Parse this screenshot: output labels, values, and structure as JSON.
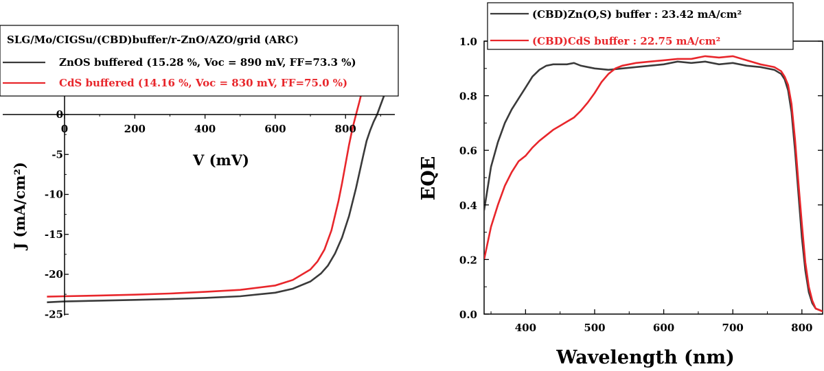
{
  "chart_data": [
    {
      "type": "line",
      "title": "",
      "xlabel": "V (mV)",
      "ylabel": "J (mA/cm²)",
      "xlim": [
        -50,
        950
      ],
      "ylim": [
        -25,
        2.5
      ],
      "xticks": [
        "0",
        "200",
        "400",
        "600",
        "800"
      ],
      "xtick_values": [
        0,
        200,
        400,
        600,
        800
      ],
      "yticks": [
        "0",
        "-5",
        "-10",
        "-15",
        "-20",
        "-25"
      ],
      "ytick_values": [
        0,
        -5,
        -10,
        -15,
        -20,
        -25
      ],
      "grid": false,
      "legend_position": "top-left",
      "legend_title": "SLG/Mo/CIGSu/(CBD)buffer/r-ZnO/AZO/grid (ARC)",
      "series": [
        {
          "name": "ZnOS buffered (15.28 %, Voc = 890 mV, FF=73.3 %)",
          "color": "#3a3a3a",
          "x": [
            -50,
            0,
            100,
            200,
            300,
            400,
            500,
            600,
            650,
            700,
            730,
            750,
            770,
            790,
            810,
            830,
            850,
            860,
            870,
            880,
            890,
            900,
            910,
            920
          ],
          "y": [
            -23.5,
            -23.4,
            -23.3,
            -23.2,
            -23.1,
            -22.95,
            -22.75,
            -22.3,
            -21.8,
            -20.9,
            -19.9,
            -18.9,
            -17.4,
            -15.4,
            -12.7,
            -9.2,
            -5.2,
            -3.3,
            -2.0,
            -0.9,
            0.0,
            1.2,
            2.4,
            3.8
          ]
        },
        {
          "name": "CdS buffered (14.16 %, Voc = 830 mV, FF=75.0 %)",
          "color": "#e8262b",
          "x": [
            -50,
            0,
            100,
            200,
            300,
            400,
            500,
            600,
            650,
            700,
            720,
            740,
            760,
            780,
            790,
            800,
            810,
            820,
            830,
            840,
            850
          ],
          "y": [
            -22.8,
            -22.75,
            -22.65,
            -22.55,
            -22.4,
            -22.2,
            -21.95,
            -21.4,
            -20.7,
            -19.4,
            -18.4,
            -16.9,
            -14.5,
            -10.8,
            -8.6,
            -6.2,
            -3.8,
            -1.7,
            0.0,
            1.7,
            3.5
          ]
        }
      ]
    },
    {
      "type": "line",
      "title": "",
      "xlabel": "Wavelength (nm)",
      "ylabel": "EQE",
      "xlim": [
        340,
        830
      ],
      "ylim": [
        0,
        1.0
      ],
      "xticks": [
        "400",
        "500",
        "600",
        "700",
        "800"
      ],
      "xtick_values": [
        400,
        500,
        600,
        700,
        800
      ],
      "yticks": [
        "0.0",
        "0.2",
        "0.4",
        "0.6",
        "0.8",
        "1.0"
      ],
      "ytick_values": [
        0.0,
        0.2,
        0.4,
        0.6,
        0.8,
        1.0
      ],
      "grid": false,
      "legend_position": "top",
      "series": [
        {
          "name": "(CBD)Zn(O,S) buffer : 23.42 mA/cm²",
          "color": "#3a3a3a",
          "x": [
            340,
            350,
            360,
            370,
            380,
            390,
            400,
            410,
            420,
            430,
            440,
            450,
            460,
            470,
            480,
            490,
            500,
            520,
            540,
            560,
            580,
            600,
            620,
            640,
            660,
            680,
            700,
            720,
            740,
            760,
            770,
            775,
            780,
            785,
            790,
            795,
            800,
            805,
            810,
            815,
            820,
            825,
            830
          ],
          "y": [
            0.38,
            0.54,
            0.63,
            0.7,
            0.75,
            0.79,
            0.83,
            0.87,
            0.895,
            0.91,
            0.915,
            0.915,
            0.915,
            0.92,
            0.91,
            0.905,
            0.9,
            0.895,
            0.9,
            0.905,
            0.91,
            0.915,
            0.925,
            0.92,
            0.925,
            0.915,
            0.92,
            0.91,
            0.905,
            0.895,
            0.88,
            0.86,
            0.82,
            0.74,
            0.6,
            0.44,
            0.28,
            0.16,
            0.08,
            0.04,
            0.02,
            0.015,
            0.01
          ]
        },
        {
          "name": "(CBD)CdS buffer : 22.75 mA/cm²",
          "color": "#e8262b",
          "x": [
            340,
            350,
            360,
            370,
            380,
            390,
            400,
            410,
            420,
            430,
            440,
            450,
            460,
            470,
            480,
            490,
            500,
            510,
            520,
            530,
            540,
            560,
            580,
            600,
            620,
            640,
            660,
            680,
            700,
            720,
            740,
            760,
            770,
            775,
            780,
            785,
            790,
            795,
            800,
            805,
            810,
            815,
            820,
            825,
            830
          ],
          "y": [
            0.2,
            0.32,
            0.4,
            0.47,
            0.52,
            0.56,
            0.58,
            0.61,
            0.635,
            0.655,
            0.675,
            0.69,
            0.705,
            0.72,
            0.745,
            0.775,
            0.81,
            0.85,
            0.88,
            0.9,
            0.91,
            0.92,
            0.925,
            0.93,
            0.935,
            0.935,
            0.945,
            0.94,
            0.945,
            0.93,
            0.915,
            0.905,
            0.89,
            0.87,
            0.84,
            0.77,
            0.64,
            0.48,
            0.33,
            0.19,
            0.1,
            0.05,
            0.02,
            0.015,
            0.01
          ]
        }
      ]
    }
  ]
}
